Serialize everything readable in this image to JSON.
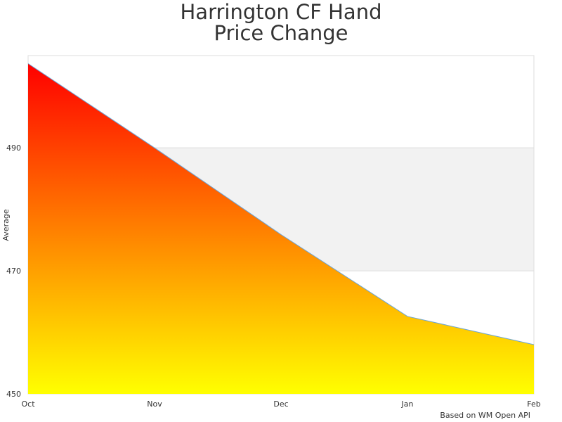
{
  "chart_data": {
    "type": "area",
    "title": "Harrington CF Hand Price Change",
    "y_axis_label": "Average",
    "credit": "Based on WM Open API",
    "categories": [
      "Oct",
      "Nov",
      "Dec",
      "Jan",
      "Feb"
    ],
    "series": [
      {
        "name": "Average",
        "color": "#6aa5d8",
        "fill_top": "#ff0000",
        "fill_bottom": "#ffff00",
        "values": [
          503.7,
          490,
          475.9,
          462.6,
          458
        ]
      }
    ],
    "ylim": [
      450,
      505
    ],
    "yticks": [
      450,
      470,
      490
    ],
    "alternate_bands": "#f2f2f2"
  }
}
